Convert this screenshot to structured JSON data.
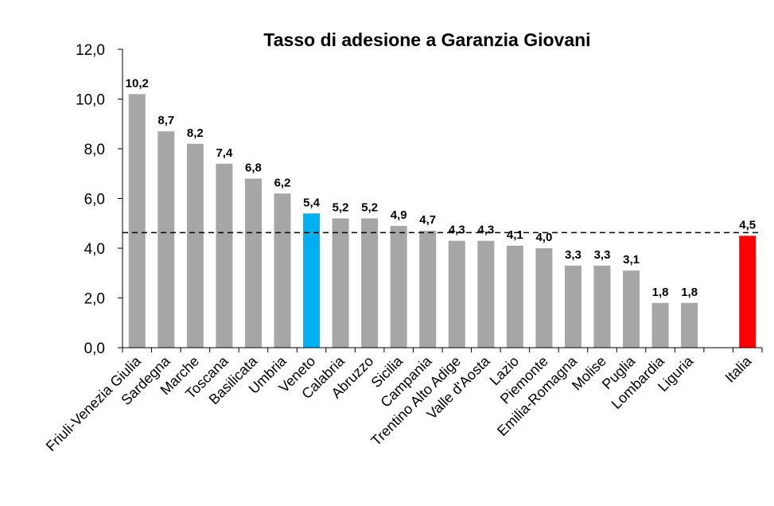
{
  "chart_data": {
    "type": "bar",
    "title": "Tasso di adesione a Garanzia Giovani",
    "xlabel": "",
    "ylabel": "",
    "ylim": [
      0,
      12
    ],
    "y_ticks": [
      "0,0",
      "2,0",
      "4,0",
      "6,0",
      "8,0",
      "10,0",
      "12,0"
    ],
    "grid": false,
    "categories": [
      "Friuli-Venezia Giulia",
      "Sardegna",
      "Marche",
      "Toscana",
      "Basilicata",
      "Umbria",
      "Veneto",
      "Calabria",
      "Abruzzo",
      "Sicilia",
      "Campania",
      "Trentino Alto Adige",
      "Valle d'Aosta",
      "Lazio",
      "Piemonte",
      "Emilia-Romagna",
      "Molise",
      "Puglia",
      "Lombardia",
      "Liguria",
      "",
      "Italia"
    ],
    "values": [
      10.2,
      8.7,
      8.2,
      7.4,
      6.8,
      6.2,
      5.4,
      5.2,
      5.2,
      4.9,
      4.7,
      4.3,
      4.3,
      4.1,
      4.0,
      3.3,
      3.3,
      3.1,
      1.8,
      1.8,
      null,
      4.5
    ],
    "value_labels": [
      "10,2",
      "8,7",
      "8,2",
      "7,4",
      "6,8",
      "6,2",
      "5,4",
      "5,2",
      "5,2",
      "4,9",
      "4,7",
      "4,3",
      "4,3",
      "4,1",
      "4,0",
      "3,3",
      "3,3",
      "3,1",
      "1,8",
      "1,8",
      "",
      "4,5"
    ],
    "reference_line": {
      "value": 4.5,
      "style": "dashed"
    },
    "colors": {
      "default": "#a6a6a6",
      "Veneto": "#00b0f0",
      "Italia": "#ff0000"
    }
  }
}
